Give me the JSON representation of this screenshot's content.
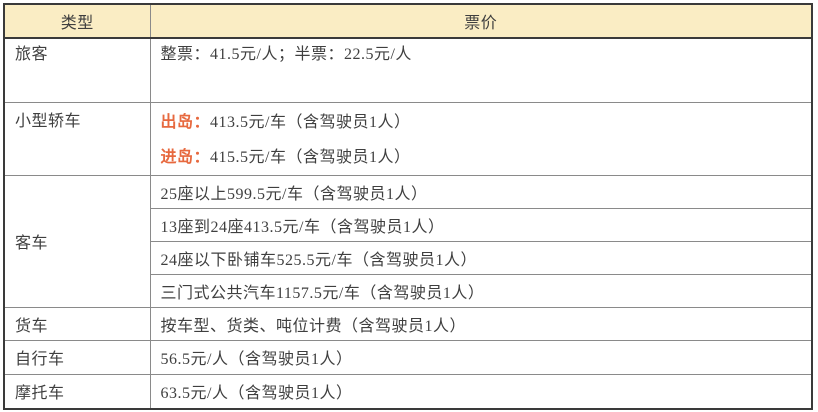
{
  "colors": {
    "header_bg": "#FAEDC4",
    "accent_text": "#E7693F",
    "body_text": "#3F3F3F",
    "outer_border": "#3A3A3A",
    "inner_border": "#8A8A8A"
  },
  "header": {
    "type_label": "类型",
    "price_label": "票价"
  },
  "rows": {
    "passenger": {
      "type": "旅客",
      "price": "整票：41.5元/人；半票：22.5元/人"
    },
    "small_car": {
      "type": "小型轿车",
      "out_label": "出岛：",
      "out_price": "413.5元/车（含驾驶员1人）",
      "in_label": "进岛：",
      "in_price": "415.5元/车（含驾驶员1人）"
    },
    "bus": {
      "type": "客车",
      "tiers": [
        "25座以上599.5元/车（含驾驶员1人）",
        "13座到24座413.5元/车（含驾驶员1人）",
        "24座以下卧铺车525.5元/车（含驾驶员1人）",
        "三门式公共汽车1157.5元/车（含驾驶员1人）"
      ]
    },
    "truck": {
      "type": "货车",
      "price": "按车型、货类、吨位计费（含驾驶员1人）"
    },
    "bicycle": {
      "type": "自行车",
      "price": "56.5元/人（含驾驶员1人）"
    },
    "motorcycle": {
      "type": "摩托车",
      "price": "63.5元/人（含驾驶员1人）"
    }
  }
}
